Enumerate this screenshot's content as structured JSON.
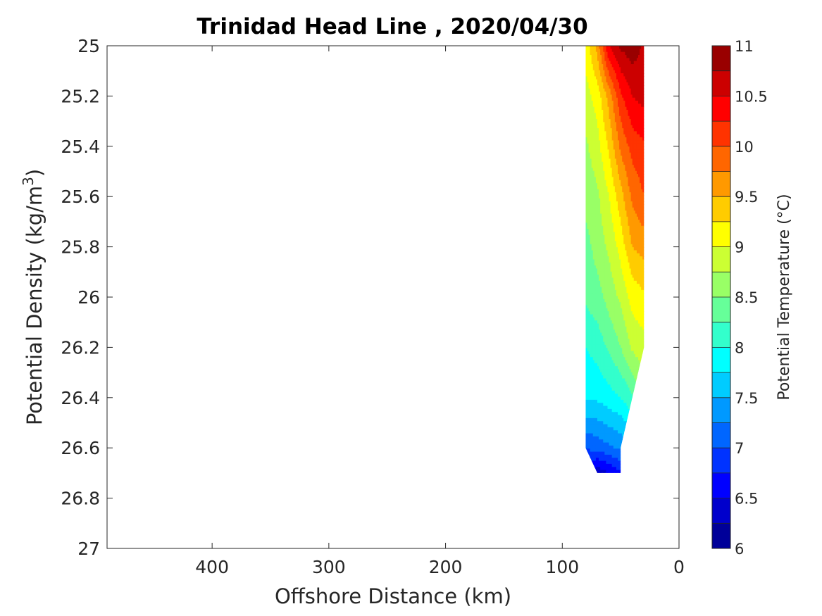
{
  "chart_data": {
    "type": "heatmap",
    "subtype": "filled-contour",
    "title": "Trinidad Head Line , 2020/04/30",
    "xlabel": "Offshore Distance (km)",
    "ylabel_prefix": "Potential Density (kg/m",
    "ylabel_sup": "3",
    "ylabel_suffix": ")",
    "colorbar_label": "Potential Temperature (°C)",
    "xlim": [
      490,
      0
    ],
    "x_reversed": true,
    "ylim": [
      25,
      27
    ],
    "y_reversed": true,
    "xticks": [
      400,
      300,
      200,
      100,
      0
    ],
    "xtick_labels": [
      "400",
      "300",
      "200",
      "100",
      "0"
    ],
    "yticks": [
      25,
      25.2,
      25.4,
      25.6,
      25.8,
      26,
      26.2,
      26.4,
      26.6,
      26.8,
      27
    ],
    "ytick_labels": [
      "25",
      "25.2",
      "25.4",
      "25.6",
      "25.8",
      "26",
      "26.2",
      "26.4",
      "26.6",
      "26.8",
      "27"
    ],
    "colorbar": {
      "range": [
        6,
        11
      ],
      "levels": [
        6,
        6.25,
        6.5,
        6.75,
        7,
        7.25,
        7.5,
        7.75,
        8,
        8.25,
        8.5,
        8.75,
        9,
        9.25,
        9.5,
        9.75,
        10,
        10.25,
        10.5,
        10.75,
        11
      ],
      "ticks": [
        6,
        6.5,
        7,
        7.5,
        8,
        8.5,
        9,
        9.5,
        10,
        10.5,
        11
      ],
      "tick_labels": [
        "6",
        "6.5",
        "7",
        "7.5",
        "8",
        "8.5",
        "9",
        "9.5",
        "10",
        "10.5",
        "11"
      ],
      "colormap": "jet"
    },
    "stations_x": [
      80,
      70,
      60,
      50,
      40,
      30
    ],
    "densities": [
      25,
      25.2,
      25.4,
      25.6,
      25.8,
      26,
      26.2,
      26.4,
      26.6,
      26.7
    ],
    "values": [
      [
        9.1,
        9.6,
        10.5,
        10.8,
        10.9,
        10.7
      ],
      [
        8.9,
        9.1,
        9.6,
        10.2,
        10.5,
        10.6
      ],
      [
        8.7,
        8.9,
        9.3,
        9.8,
        10.1,
        10.2
      ],
      [
        8.6,
        8.7,
        9.0,
        9.4,
        9.8,
        10.0
      ],
      [
        8.4,
        8.6,
        8.8,
        9.1,
        9.5,
        9.6
      ],
      [
        8.3,
        8.4,
        8.6,
        8.8,
        9.1,
        9.2
      ],
      [
        8.0,
        8.1,
        8.3,
        8.5,
        8.8,
        8.9
      ],
      [
        7.8,
        7.8,
        7.9,
        8.0,
        8.2,
        null
      ],
      [
        7.0,
        7.1,
        7.2,
        7.3,
        null,
        null
      ],
      [
        null,
        6.3,
        6.5,
        6.7,
        null,
        null
      ]
    ]
  }
}
